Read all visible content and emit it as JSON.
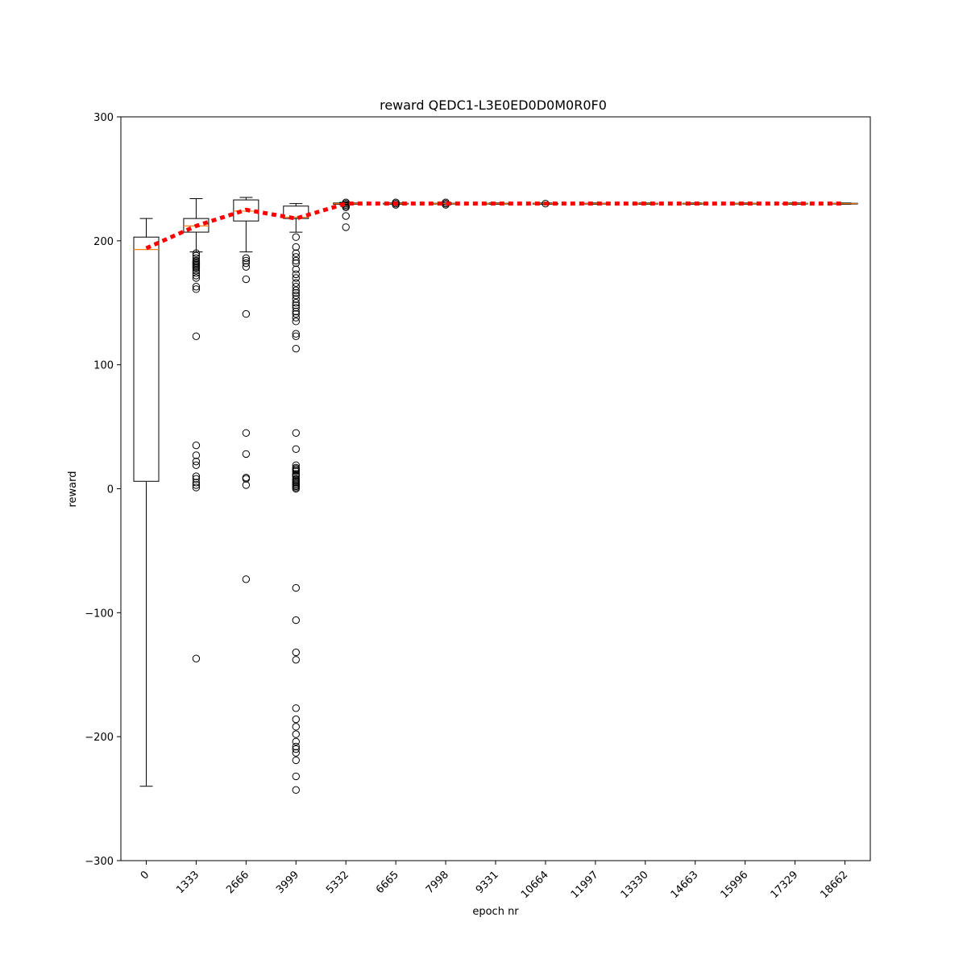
{
  "chart_data": {
    "type": "box",
    "title": "reward QEDC1-L3E0ED0D0M0R0F0",
    "xlabel": "epoch nr",
    "ylabel": "reward",
    "ylim": [
      -300,
      300
    ],
    "yticks": [
      -300,
      -200,
      -100,
      0,
      100,
      200,
      300
    ],
    "ytick_labels": [
      "−300",
      "−200",
      "−100",
      "0",
      "100",
      "200",
      "300"
    ],
    "categories": [
      "0",
      "1333",
      "2666",
      "3999",
      "5332",
      "6665",
      "7998",
      "9331",
      "10664",
      "11997",
      "13330",
      "14663",
      "15996",
      "17329",
      "18662"
    ],
    "xtick_rotation_deg": 45,
    "grid": false,
    "colors": {
      "box": "#000000",
      "median": "#ff7f0e",
      "mean_line": "#ff0000"
    },
    "boxes": [
      {
        "whislo": -240,
        "q1": 6,
        "med": 193,
        "q3": 203,
        "whishi": 218,
        "fliers": []
      },
      {
        "whislo": 191,
        "q1": 207,
        "med": 212,
        "q3": 218,
        "whishi": 234,
        "fliers": [
          190,
          188,
          186,
          184,
          183,
          182,
          181,
          180,
          179,
          178,
          176,
          174,
          172,
          170,
          163,
          161,
          123,
          35,
          27,
          22,
          19,
          10,
          8,
          5,
          3,
          1,
          -137
        ]
      },
      {
        "whislo": 191,
        "q1": 216,
        "med": 224,
        "q3": 233,
        "whishi": 235,
        "fliers": [
          186,
          184,
          182,
          179,
          169,
          141,
          45,
          28,
          9,
          8,
          3,
          -73
        ]
      },
      {
        "whislo": 207,
        "q1": 218,
        "med": 219,
        "q3": 228,
        "whishi": 230,
        "fliers": [
          203,
          195,
          190,
          187,
          184,
          182,
          177,
          173,
          170,
          166,
          163,
          160,
          158,
          156,
          153,
          150,
          148,
          146,
          143,
          141,
          138,
          135,
          125,
          123,
          113,
          45,
          32,
          19,
          17,
          16,
          15,
          14,
          12,
          11,
          10,
          8,
          7,
          6,
          5,
          4,
          3,
          2,
          1,
          0,
          -80,
          -106,
          -132,
          -138,
          -177,
          -186,
          -192,
          -198,
          -204,
          -208,
          -210,
          -213,
          -219,
          -232,
          -243
        ]
      },
      {
        "whislo": 229,
        "q1": 229.5,
        "med": 230,
        "q3": 230.5,
        "whishi": 231,
        "fliers": [
          231,
          230,
          229,
          228,
          227,
          220,
          211
        ]
      },
      {
        "whislo": 229.5,
        "q1": 229.7,
        "med": 230,
        "q3": 230.3,
        "whishi": 230.5,
        "fliers": [
          231,
          230,
          229
        ]
      },
      {
        "whislo": 229.5,
        "q1": 229.7,
        "med": 230,
        "q3": 230.3,
        "whishi": 230.5,
        "fliers": [
          231,
          230,
          229
        ]
      },
      {
        "whislo": 229.5,
        "q1": 229.7,
        "med": 230,
        "q3": 230.3,
        "whishi": 230.5,
        "fliers": []
      },
      {
        "whislo": 229.5,
        "q1": 229.7,
        "med": 230,
        "q3": 230.3,
        "whishi": 230.5,
        "fliers": [
          230
        ]
      },
      {
        "whislo": 229.5,
        "q1": 229.7,
        "med": 230,
        "q3": 230.3,
        "whishi": 230.5,
        "fliers": []
      },
      {
        "whislo": 229.5,
        "q1": 229.7,
        "med": 230,
        "q3": 230.3,
        "whishi": 230.5,
        "fliers": []
      },
      {
        "whislo": 229.5,
        "q1": 229.7,
        "med": 230,
        "q3": 230.3,
        "whishi": 230.5,
        "fliers": []
      },
      {
        "whislo": 229.5,
        "q1": 229.7,
        "med": 230,
        "q3": 230.3,
        "whishi": 230.5,
        "fliers": []
      },
      {
        "whislo": 229.5,
        "q1": 229.7,
        "med": 230,
        "q3": 230.3,
        "whishi": 230.5,
        "fliers": []
      },
      {
        "whislo": 229.5,
        "q1": 229.7,
        "med": 230,
        "q3": 230.3,
        "whishi": 230.5,
        "fliers": []
      }
    ],
    "mean_line": [
      194,
      212,
      225,
      218,
      230,
      230,
      230,
      230,
      230,
      230,
      230,
      230,
      230,
      230,
      230
    ]
  }
}
